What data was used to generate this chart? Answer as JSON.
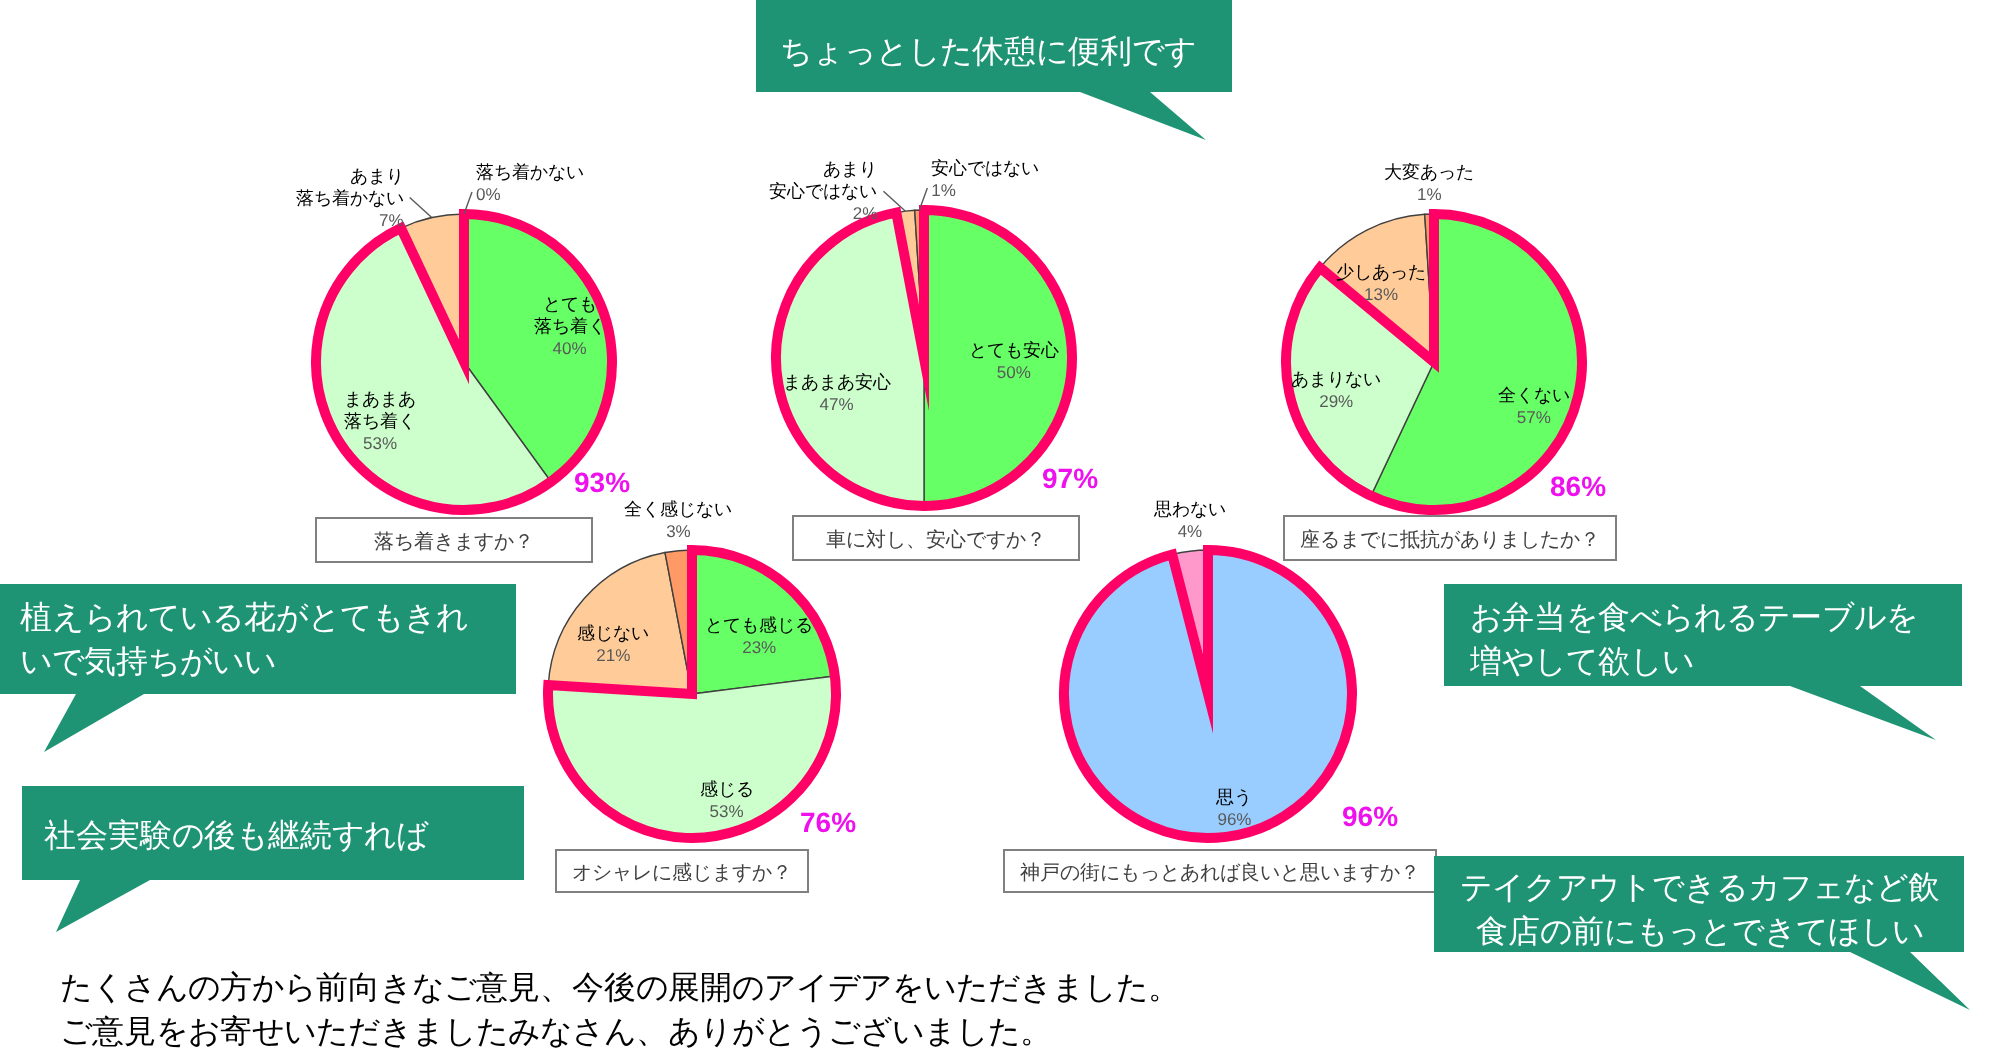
{
  "chart_data": [
    {
      "type": "pie",
      "title": "落ち着きますか？",
      "categories": [
        "とても落ち着く",
        "まあまあ落ち着く",
        "あまり落ち着かない",
        "落ち着かない"
      ],
      "values": [
        40,
        53,
        7,
        0
      ],
      "colors": [
        "#66ff66",
        "#ccffcc",
        "#ffcc99",
        null
      ],
      "value_labels": [
        "40%",
        "53%",
        "7%",
        "0%"
      ],
      "annotations": [
        {
          "text": "93%",
          "x": "まあまあ落ち着く"
        }
      ]
    },
    {
      "type": "pie",
      "title": "車に対し、安心ですか？",
      "categories": [
        "とても安心",
        "まあまあ安心",
        "あまり安心ではない",
        "安心ではない"
      ],
      "values": [
        50,
        47,
        2,
        1
      ],
      "colors": [
        "#66ff66",
        "#ccffcc",
        "#ffcc99",
        "#ff9966"
      ],
      "value_labels": [
        "50%",
        "47%",
        "2%",
        "1%"
      ],
      "annotations": [
        {
          "text": "97%",
          "x": "まあまあ安心"
        }
      ]
    },
    {
      "type": "pie",
      "title": "座るまでに抵抗がありましたか？",
      "categories": [
        "全くない",
        "あまりない",
        "少しあった",
        "大変あった"
      ],
      "values": [
        57,
        29,
        13,
        1
      ],
      "colors": [
        "#66ff66",
        "#ccffcc",
        "#ffcc99",
        "#ff9966"
      ],
      "value_labels": [
        "57%",
        "29%",
        "13%",
        "1%"
      ],
      "annotations": [
        {
          "text": "86%",
          "x": "あまりない"
        }
      ]
    },
    {
      "type": "pie",
      "title": "オシャレに感じますか？",
      "categories": [
        "とても感じる",
        "感じる",
        "感じない",
        "全く感じない"
      ],
      "values": [
        23,
        53,
        21,
        3
      ],
      "colors": [
        "#66ff66",
        "#ccffcc",
        "#ffcc99",
        "#ff9966"
      ],
      "value_labels": [
        "23%",
        "53%",
        "21%",
        "3%"
      ],
      "annotations": [
        {
          "text": "76%",
          "x": "感じる"
        }
      ]
    },
    {
      "type": "pie",
      "title": "神戸の街にもっとあれば良いと思いますか？",
      "categories": [
        "思う",
        "思わない"
      ],
      "values": [
        96,
        4
      ],
      "colors": [
        "#99ccff",
        "#ff99cc"
      ],
      "value_labels": [
        "96%",
        "4%"
      ],
      "annotations": [
        {
          "text": "96%",
          "x": "思う"
        }
      ]
    },
    {
      "type": "other",
      "annotations": [
        "ちょっとした休憩に便利です",
        "植えられている花がとてもきれいで気持ちがいい",
        "お弁当を食べられるテーブルを増やして欲しい",
        "社会実験の後も継続すれば",
        "テイクアウトできるカフェなど飲食店の前にもっとできてほしい",
        "たくさんの方から前向きなご意見、今後の展開のアイデアをいただきました。",
        "ご意見をお寄せいただきましたみなさん、ありがとうございました。"
      ]
    }
  ]
}
